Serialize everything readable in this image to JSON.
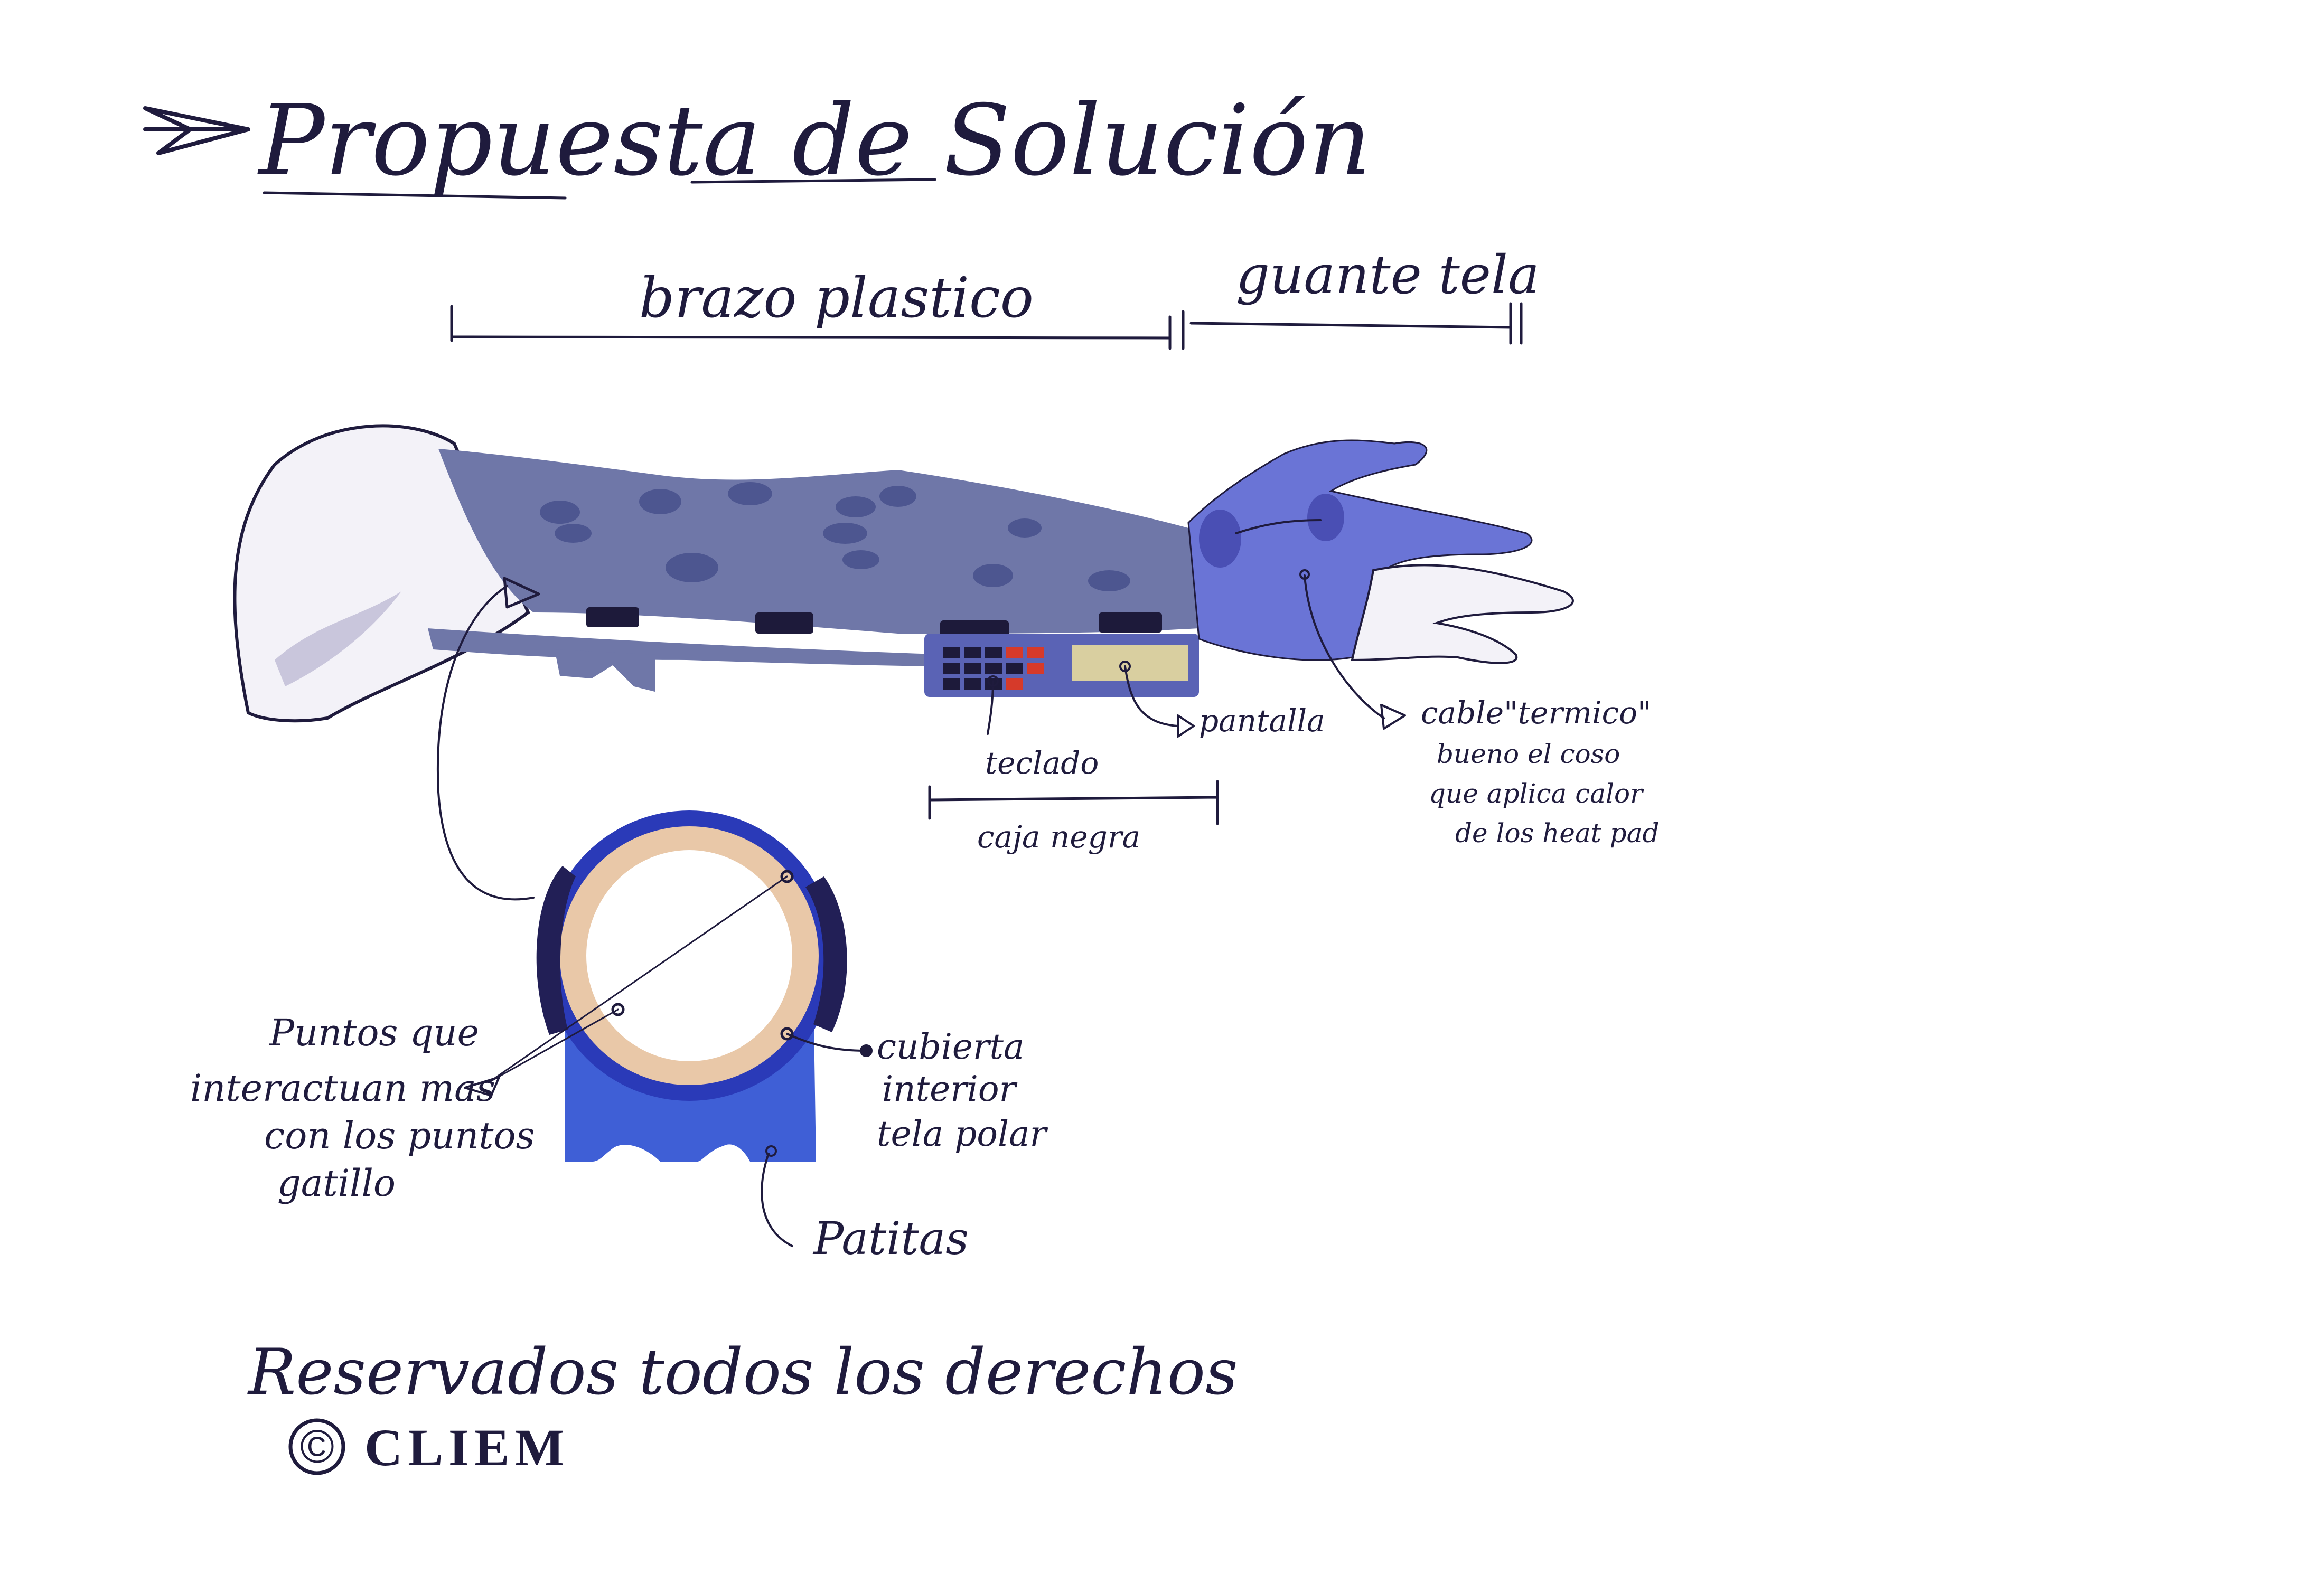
{
  "title": "Propuesta de Solución",
  "sections": {
    "plastic_arm": "brazo plastico",
    "fabric_glove": "guante tela"
  },
  "labels": {
    "keyboard": "teclado",
    "screen": "pantalla",
    "black_box": "caja negra",
    "cable_line1": "cable\"termico\"",
    "cable_line2": "bueno el coso",
    "cable_line3": "que aplica calor",
    "cable_line4": "de los heat pad",
    "points_line1": "Puntos que",
    "points_line2": "interactuan mas",
    "points_line3": "con los puntos",
    "points_line4": "gatillo",
    "lining_line1": "cubierta",
    "lining_line2": "interior",
    "lining_line3": "tela polar",
    "feet": "Patitas"
  },
  "footer": {
    "rights": "Reservados todos los derechos",
    "copyright_mark": "©",
    "brand": "CLIEM"
  },
  "colors": {
    "ink": "#1f1b3d",
    "sleeve": "#6f77a8",
    "sleeve_spots": "#4d5690",
    "glove": "#6a74d6",
    "glove_dark": "#4a4fb4",
    "strap": "#1d1a3a",
    "box": "#5a63b5",
    "screen": "#d9cfa0",
    "key_red": "#d63a2a",
    "ring_blue": "#2a3ab8",
    "ring_dark": "#221f56",
    "padding": "#e9c8a8",
    "base_blue": "#3f5fd6",
    "skin_white": "#f3f2f8"
  }
}
